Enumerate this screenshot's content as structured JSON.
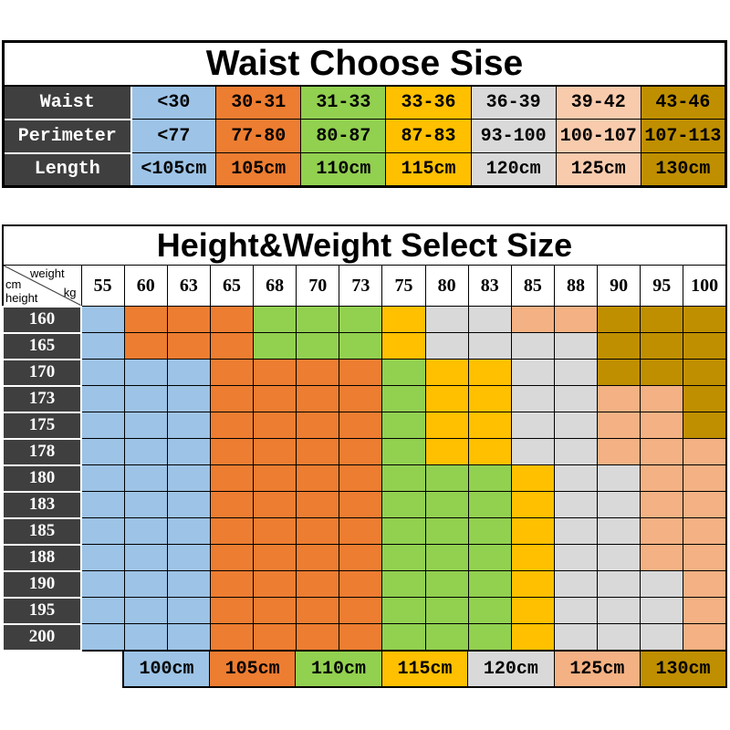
{
  "palette": {
    "header_dark": "#3F3F3F",
    "grid_line": "#000000",
    "page_background": "#FFFFFF"
  },
  "chart_data": [
    {
      "type": "table",
      "title": "Waist Choose Sise",
      "header_color": "#3F3F3F",
      "column_colors": [
        "#9DC3E6",
        "#ED7D31",
        "#92D050",
        "#FFC000",
        "#D9D9D9",
        "#F8CBAD",
        "#BF8F00"
      ],
      "rows": [
        {
          "header": "Waist",
          "values": [
            "<30",
            "30-31",
            "31-33",
            "33-36",
            "36-39",
            "39-42",
            "43-46"
          ]
        },
        {
          "header": "Perimeter",
          "values": [
            "<77",
            "77-80",
            "80-87",
            "87-83",
            "93-100",
            "100-107",
            "107-113"
          ]
        },
        {
          "header": "Length",
          "values": [
            "<105cm",
            "105cm",
            "110cm",
            "115cm",
            "120cm",
            "125cm",
            "130cm"
          ]
        }
      ]
    },
    {
      "type": "heatmap",
      "title": "Height&Weight Select Size",
      "header_color": "#3F3F3F",
      "x_label": {
        "name": "weight",
        "unit": "kg"
      },
      "y_label": {
        "name": "height",
        "unit": "cm"
      },
      "x": [
        "55",
        "60",
        "63",
        "65",
        "68",
        "70",
        "73",
        "75",
        "80",
        "83",
        "85",
        "88",
        "90",
        "95",
        "100"
      ],
      "legend": [
        {
          "label": "100cm",
          "color": "#9DC3E6"
        },
        {
          "label": "105cm",
          "color": "#ED7D31"
        },
        {
          "label": "110cm",
          "color": "#92D050"
        },
        {
          "label": "115cm",
          "color": "#FFC000"
        },
        {
          "label": "120cm",
          "color": "#D9D9D9"
        },
        {
          "label": "125cm",
          "color": "#F4B183"
        },
        {
          "label": "130cm",
          "color": "#BF8F00"
        }
      ],
      "rows": [
        {
          "height": "160",
          "sizes": [
            "100cm",
            "105cm",
            "105cm",
            "105cm",
            "110cm",
            "110cm",
            "110cm",
            "115cm",
            "120cm",
            "120cm",
            "125cm",
            "125cm",
            "130cm",
            "130cm",
            "130cm"
          ]
        },
        {
          "height": "165",
          "sizes": [
            "100cm",
            "105cm",
            "105cm",
            "105cm",
            "110cm",
            "110cm",
            "110cm",
            "115cm",
            "120cm",
            "120cm",
            "120cm",
            "120cm",
            "130cm",
            "130cm",
            "130cm"
          ]
        },
        {
          "height": "170",
          "sizes": [
            "100cm",
            "100cm",
            "100cm",
            "105cm",
            "105cm",
            "105cm",
            "105cm",
            "110cm",
            "115cm",
            "115cm",
            "120cm",
            "120cm",
            "130cm",
            "130cm",
            "130cm"
          ]
        },
        {
          "height": "173",
          "sizes": [
            "100cm",
            "100cm",
            "100cm",
            "105cm",
            "105cm",
            "105cm",
            "105cm",
            "110cm",
            "115cm",
            "115cm",
            "120cm",
            "120cm",
            "125cm",
            "125cm",
            "130cm"
          ]
        },
        {
          "height": "175",
          "sizes": [
            "100cm",
            "100cm",
            "100cm",
            "105cm",
            "105cm",
            "105cm",
            "105cm",
            "110cm",
            "115cm",
            "115cm",
            "120cm",
            "120cm",
            "125cm",
            "125cm",
            "130cm"
          ]
        },
        {
          "height": "178",
          "sizes": [
            "100cm",
            "100cm",
            "100cm",
            "105cm",
            "105cm",
            "105cm",
            "105cm",
            "110cm",
            "115cm",
            "115cm",
            "120cm",
            "120cm",
            "125cm",
            "125cm",
            "125cm"
          ]
        },
        {
          "height": "180",
          "sizes": [
            "100cm",
            "100cm",
            "100cm",
            "105cm",
            "105cm",
            "105cm",
            "105cm",
            "110cm",
            "110cm",
            "110cm",
            "115cm",
            "120cm",
            "120cm",
            "125cm",
            "125cm"
          ]
        },
        {
          "height": "183",
          "sizes": [
            "100cm",
            "100cm",
            "100cm",
            "105cm",
            "105cm",
            "105cm",
            "105cm",
            "110cm",
            "110cm",
            "110cm",
            "115cm",
            "120cm",
            "120cm",
            "125cm",
            "125cm"
          ]
        },
        {
          "height": "185",
          "sizes": [
            "100cm",
            "100cm",
            "100cm",
            "105cm",
            "105cm",
            "105cm",
            "105cm",
            "110cm",
            "110cm",
            "110cm",
            "115cm",
            "120cm",
            "120cm",
            "125cm",
            "125cm"
          ]
        },
        {
          "height": "188",
          "sizes": [
            "100cm",
            "100cm",
            "100cm",
            "105cm",
            "105cm",
            "105cm",
            "105cm",
            "110cm",
            "110cm",
            "110cm",
            "115cm",
            "120cm",
            "120cm",
            "125cm",
            "125cm"
          ]
        },
        {
          "height": "190",
          "sizes": [
            "100cm",
            "100cm",
            "100cm",
            "105cm",
            "105cm",
            "105cm",
            "105cm",
            "110cm",
            "110cm",
            "110cm",
            "115cm",
            "120cm",
            "120cm",
            "120cm",
            "125cm"
          ]
        },
        {
          "height": "195",
          "sizes": [
            "100cm",
            "100cm",
            "100cm",
            "105cm",
            "105cm",
            "105cm",
            "105cm",
            "110cm",
            "110cm",
            "110cm",
            "115cm",
            "120cm",
            "120cm",
            "120cm",
            "125cm"
          ]
        },
        {
          "height": "200",
          "sizes": [
            "100cm",
            "100cm",
            "100cm",
            "105cm",
            "105cm",
            "105cm",
            "105cm",
            "110cm",
            "110cm",
            "110cm",
            "115cm",
            "120cm",
            "120cm",
            "120cm",
            "125cm"
          ]
        }
      ]
    }
  ]
}
